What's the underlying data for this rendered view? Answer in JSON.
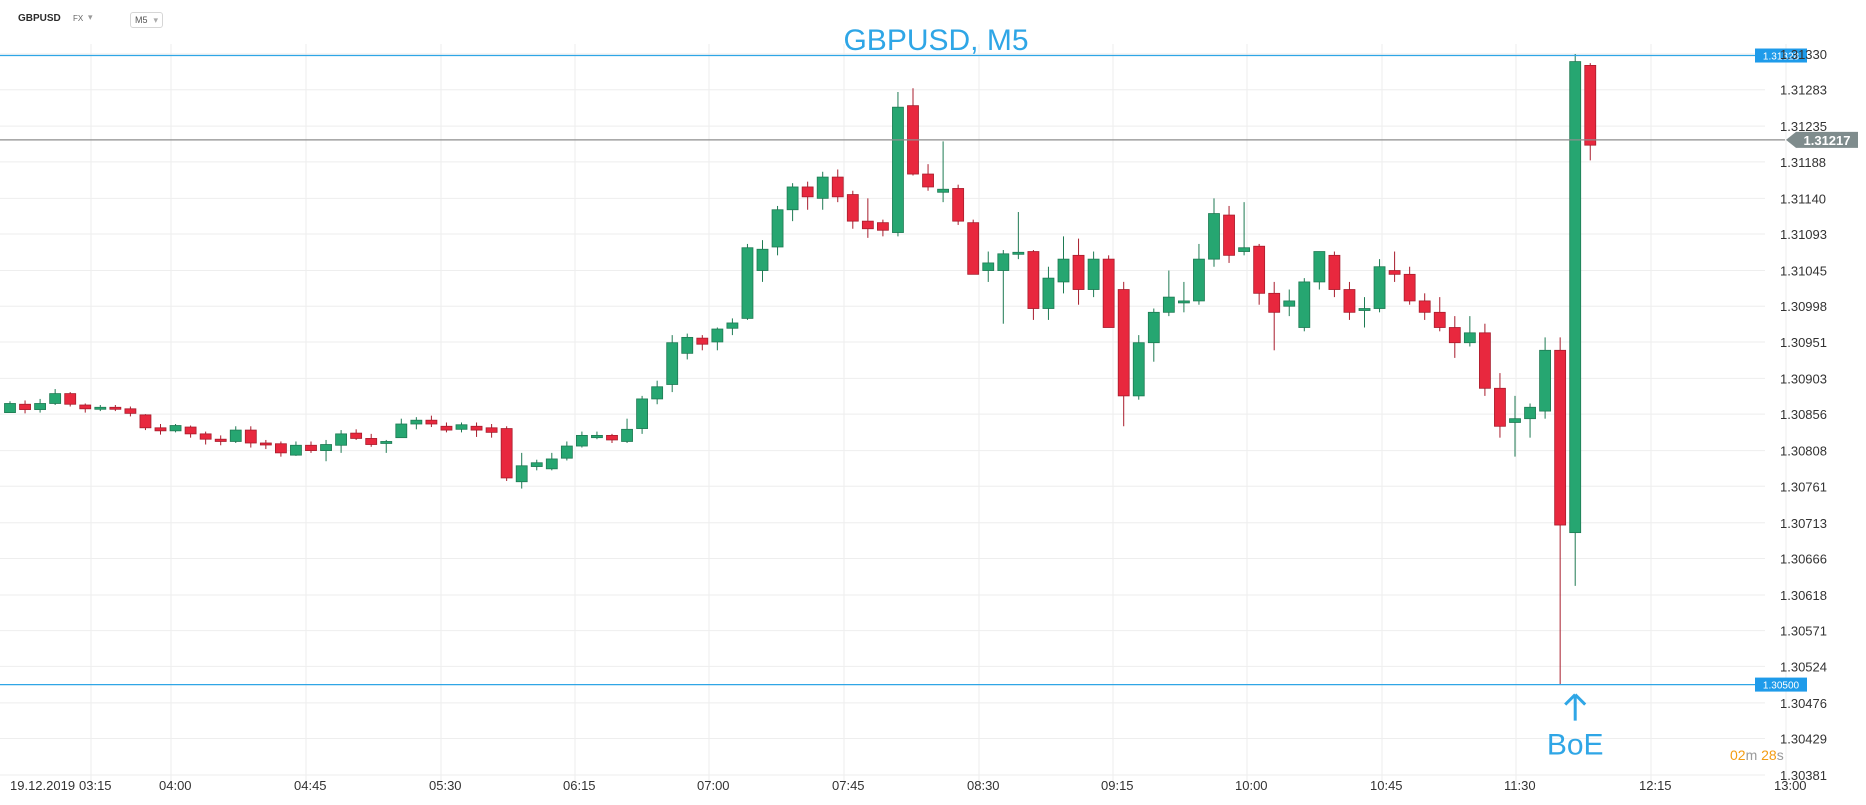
{
  "toolbar": {
    "symbol": "GBPUSD",
    "instrument_type": "FX",
    "timeframe": "M5"
  },
  "timer": {
    "minutes": "02",
    "m_unit": "m",
    "seconds": "28",
    "s_unit": "s"
  },
  "colors": {
    "up": "#26a671",
    "down": "#e8283e",
    "line": "#2fa6e6",
    "price_line": "#8e8e8e",
    "grid": "#eeeeee",
    "annotation": "#2fa6e6"
  },
  "chart_data": {
    "type": "candlestick",
    "title": "GBPUSD, M5",
    "ylim": [
      1.30381,
      1.3133
    ],
    "grid": true,
    "y_ticks": [
      "1.31330",
      "1.31283",
      "1.31235",
      "1.31188",
      "1.31140",
      "1.31093",
      "1.31045",
      "1.30998",
      "1.30951",
      "1.30903",
      "1.30856",
      "1.30808",
      "1.30761",
      "1.30713",
      "1.30666",
      "1.30618",
      "1.30571",
      "1.30524",
      "1.30476",
      "1.30429",
      "1.30381"
    ],
    "x_ticks": [
      "19.12.2019",
      "03:15",
      "04:00",
      "04:45",
      "05:30",
      "06:15",
      "07:00",
      "07:45",
      "08:30",
      "09:15",
      "10:00",
      "10:45",
      "11:30",
      "12:15",
      "13:00"
    ],
    "current_price": "1.31217",
    "horizontal_lines": [
      {
        "value": 1.31328,
        "label": "1.31328"
      },
      {
        "value": 1.305,
        "label": "1.30500"
      }
    ],
    "annotation": {
      "text": "BoE",
      "at_candle": 104
    },
    "candles": [
      [
        1.30858,
        1.30873,
        1.30859,
        1.3087
      ],
      [
        1.30869,
        1.30874,
        1.30857,
        1.30862
      ],
      [
        1.30862,
        1.30876,
        1.30858,
        1.3087
      ],
      [
        1.3087,
        1.30889,
        1.30868,
        1.30883
      ],
      [
        1.30883,
        1.30885,
        1.30866,
        1.30869
      ],
      [
        1.30868,
        1.3087,
        1.30858,
        1.30863
      ],
      [
        1.30863,
        1.30868,
        1.3086,
        1.30865
      ],
      [
        1.30865,
        1.30868,
        1.3086,
        1.30863
      ],
      [
        1.30863,
        1.30866,
        1.30853,
        1.30857
      ],
      [
        1.30855,
        1.30856,
        1.30835,
        1.30838
      ],
      [
        1.30838,
        1.30843,
        1.30829,
        1.30834
      ],
      [
        1.30834,
        1.30843,
        1.30832,
        1.30841
      ],
      [
        1.30839,
        1.30841,
        1.30825,
        1.3083
      ],
      [
        1.3083,
        1.30833,
        1.30816,
        1.30823
      ],
      [
        1.30823,
        1.30828,
        1.30815,
        1.3082
      ],
      [
        1.3082,
        1.3084,
        1.30818,
        1.30835
      ],
      [
        1.30835,
        1.3084,
        1.30812,
        1.30818
      ],
      [
        1.30818,
        1.30822,
        1.3081,
        1.30817
      ],
      [
        1.30817,
        1.3082,
        1.308,
        1.30805
      ],
      [
        1.30802,
        1.3082,
        1.30801,
        1.30815
      ],
      [
        1.30815,
        1.3082,
        1.30805,
        1.30808
      ],
      [
        1.30808,
        1.30822,
        1.30794,
        1.30816
      ],
      [
        1.30815,
        1.30835,
        1.30805,
        1.3083
      ],
      [
        1.30831,
        1.30836,
        1.30822,
        1.30824
      ],
      [
        1.30824,
        1.3083,
        1.30813,
        1.30816
      ],
      [
        1.30818,
        1.30822,
        1.30805,
        1.3082
      ],
      [
        1.30825,
        1.3085,
        1.30825,
        1.30843
      ],
      [
        1.30843,
        1.30852,
        1.30836,
        1.30848
      ],
      [
        1.30848,
        1.30854,
        1.30839,
        1.30843
      ],
      [
        1.3084,
        1.30845,
        1.30832,
        1.30835
      ],
      [
        1.30836,
        1.30845,
        1.30832,
        1.30842
      ],
      [
        1.3084,
        1.30845,
        1.30826,
        1.30835
      ],
      [
        1.30838,
        1.30843,
        1.30825,
        1.30832
      ],
      [
        1.30837,
        1.3084,
        1.30768,
        1.30772
      ],
      [
        1.30767,
        1.30805,
        1.30758,
        1.30788
      ],
      [
        1.30787,
        1.30796,
        1.30782,
        1.30792
      ],
      [
        1.30784,
        1.30805,
        1.30782,
        1.30797
      ],
      [
        1.30798,
        1.3082,
        1.30795,
        1.30814
      ],
      [
        1.30814,
        1.30833,
        1.30812,
        1.30828
      ],
      [
        1.30825,
        1.30833,
        1.30823,
        1.30828
      ],
      [
        1.30828,
        1.3083,
        1.30818,
        1.30822
      ],
      [
        1.3082,
        1.3085,
        1.30818,
        1.30836
      ],
      [
        1.30837,
        1.3088,
        1.3083,
        1.30876
      ],
      [
        1.30876,
        1.309,
        1.30869,
        1.30892
      ],
      [
        1.30895,
        1.3096,
        1.30885,
        1.3095
      ],
      [
        1.30936,
        1.30962,
        1.30928,
        1.30957
      ],
      [
        1.30956,
        1.3096,
        1.3094,
        1.30948
      ],
      [
        1.30951,
        1.3097,
        1.3094,
        1.30968
      ],
      [
        1.30969,
        1.30982,
        1.3096,
        1.30976
      ],
      [
        1.30982,
        1.3108,
        1.3098,
        1.31075
      ],
      [
        1.31045,
        1.31085,
        1.3103,
        1.31073
      ],
      [
        1.31076,
        1.3113,
        1.31065,
        1.31125
      ],
      [
        1.31125,
        1.3116,
        1.3111,
        1.31155
      ],
      [
        1.31155,
        1.31162,
        1.31125,
        1.31142
      ],
      [
        1.3114,
        1.31175,
        1.31125,
        1.31168
      ],
      [
        1.31168,
        1.31178,
        1.31135,
        1.31142
      ],
      [
        1.31145,
        1.3115,
        1.311,
        1.3111
      ],
      [
        1.3111,
        1.3114,
        1.31088,
        1.311
      ],
      [
        1.31108,
        1.31112,
        1.3109,
        1.31098
      ],
      [
        1.31095,
        1.3128,
        1.3109,
        1.3126
      ],
      [
        1.31262,
        1.31285,
        1.3117,
        1.31172
      ],
      [
        1.31172,
        1.31185,
        1.3115,
        1.31155
      ],
      [
        1.31148,
        1.31215,
        1.31135,
        1.31152
      ],
      [
        1.31153,
        1.31158,
        1.31105,
        1.3111
      ],
      [
        1.31108,
        1.31112,
        1.3104,
        1.3104
      ],
      [
        1.31045,
        1.3107,
        1.3103,
        1.31055
      ],
      [
        1.31045,
        1.31072,
        1.30975,
        1.31067
      ],
      [
        1.31068,
        1.31122,
        1.3106,
        1.31069
      ],
      [
        1.3107,
        1.31072,
        1.3098,
        1.30995
      ],
      [
        1.30995,
        1.3105,
        1.3098,
        1.31035
      ],
      [
        1.3103,
        1.3109,
        1.31015,
        1.3106
      ],
      [
        1.31065,
        1.31087,
        1.31,
        1.3102
      ],
      [
        1.3102,
        1.3107,
        1.3101,
        1.3106
      ],
      [
        1.3106,
        1.31065,
        1.3097,
        1.3097
      ],
      [
        1.3102,
        1.3103,
        1.3084,
        1.3088
      ],
      [
        1.3088,
        1.3096,
        1.30875,
        1.3095
      ],
      [
        1.3095,
        1.30995,
        1.30925,
        1.3099
      ],
      [
        1.3099,
        1.31045,
        1.30985,
        1.3101
      ],
      [
        1.31005,
        1.3103,
        1.3099,
        1.31005
      ],
      [
        1.31005,
        1.3108,
        1.31,
        1.3106
      ],
      [
        1.3106,
        1.3114,
        1.3105,
        1.3112
      ],
      [
        1.31118,
        1.3113,
        1.31055,
        1.31065
      ],
      [
        1.3107,
        1.31135,
        1.31065,
        1.31075
      ],
      [
        1.31077,
        1.3108,
        1.31,
        1.31015
      ],
      [
        1.31015,
        1.3103,
        1.3094,
        1.3099
      ],
      [
        1.30998,
        1.3102,
        1.30985,
        1.31005
      ],
      [
        1.3097,
        1.31035,
        1.30965,
        1.3103
      ],
      [
        1.3103,
        1.3107,
        1.3102,
        1.3107
      ],
      [
        1.31065,
        1.3107,
        1.3101,
        1.3102
      ],
      [
        1.3102,
        1.3103,
        1.3098,
        1.3099
      ],
      [
        1.30995,
        1.3101,
        1.3097,
        1.30995
      ],
      [
        1.30995,
        1.3106,
        1.3099,
        1.3105
      ],
      [
        1.31045,
        1.3107,
        1.3103,
        1.3104
      ],
      [
        1.3104,
        1.3105,
        1.31,
        1.31005
      ],
      [
        1.31005,
        1.31015,
        1.3098,
        1.3099
      ],
      [
        1.3099,
        1.3101,
        1.30965,
        1.3097
      ],
      [
        1.3097,
        1.30985,
        1.3093,
        1.3095
      ],
      [
        1.3095,
        1.30985,
        1.30945,
        1.30963
      ],
      [
        1.30963,
        1.30975,
        1.3088,
        1.3089
      ],
      [
        1.3089,
        1.3091,
        1.30825,
        1.3084
      ],
      [
        1.30845,
        1.3088,
        1.308,
        1.3085
      ],
      [
        1.3085,
        1.3087,
        1.30825,
        1.30865
      ],
      [
        1.3086,
        1.30957,
        1.3085,
        1.3094
      ],
      [
        1.3094,
        1.30957,
        1.305,
        1.3071
      ],
      [
        1.307,
        1.3133,
        1.3063,
        1.3132
      ],
      [
        1.31315,
        1.31318,
        1.3119,
        1.3121
      ]
    ]
  }
}
